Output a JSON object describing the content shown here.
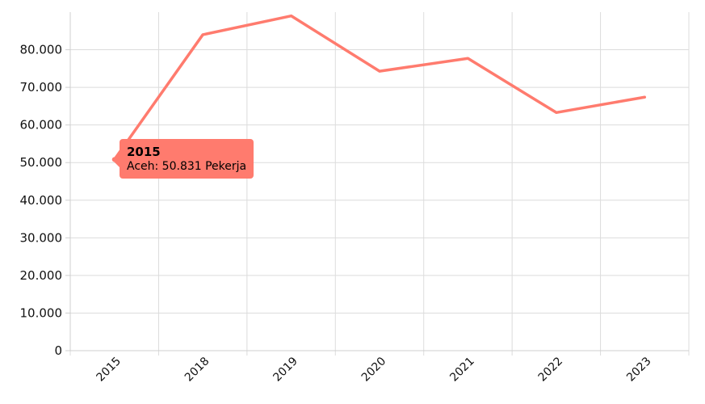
{
  "chart_data": {
    "type": "line",
    "title": "",
    "xlabel": "",
    "ylabel": "",
    "categories": [
      "2015",
      "2018",
      "2019",
      "2020",
      "2021",
      "2022",
      "2023"
    ],
    "series": [
      {
        "name": "Aceh",
        "values": [
          50831,
          84000,
          89000,
          74300,
          77700,
          63300,
          67400
        ]
      }
    ],
    "ylim": [
      0,
      90000
    ],
    "yticks": [
      0,
      10000,
      20000,
      30000,
      40000,
      50000,
      60000,
      70000,
      80000
    ],
    "ytick_labels": [
      "0",
      "10.000",
      "20.000",
      "30.000",
      "40.000",
      "50.000",
      "60.000",
      "70.000",
      "80.000"
    ],
    "grid": true,
    "legend": "none",
    "line_color": "#ff7b6e",
    "tooltip": {
      "title": "2015",
      "text": "Aceh: 50.831 Pekerja",
      "background": "#ff7b6e"
    }
  }
}
